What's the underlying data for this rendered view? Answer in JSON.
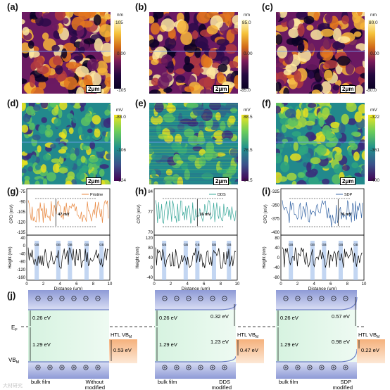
{
  "panel_labels": [
    "(a)",
    "(b)",
    "(c)",
    "(d)",
    "(e)",
    "(f)",
    "(g)",
    "(h)",
    "(i)",
    "(j)"
  ],
  "afm": [
    {
      "unit": "nm",
      "max": "105",
      "mid": "0.00",
      "min": "-105",
      "scale": "2μm"
    },
    {
      "unit": "nm",
      "max": "85.0",
      "mid": "0.00",
      "min": "-85.0",
      "scale": "2μm"
    },
    {
      "unit": "nm",
      "max": "80.0",
      "mid": "0.00",
      "min": "-80.0",
      "scale": "2μm"
    }
  ],
  "kpfm": [
    {
      "unit": "mV",
      "max": "-88.0",
      "mid": "-106",
      "min": "-124",
      "scale": "2μm"
    },
    {
      "unit": "mV",
      "max": "88.5",
      "mid": "76.5",
      "min": "64.5",
      "scale": "2μm"
    },
    {
      "unit": "mV",
      "max": "-322",
      "mid": "-361",
      "min": "-400",
      "scale": "2μm"
    }
  ],
  "chart_data": [
    {
      "type": "line",
      "panel": "(g)",
      "legend": "Pristine",
      "ylabel": "CPD (mV)",
      "yticks": [
        "-75",
        "-90",
        "-105",
        "-120",
        "-135"
      ],
      "annotation": "47 mV",
      "color": "#e8873f"
    },
    {
      "type": "line",
      "panel": "(h)",
      "legend": "DDS",
      "ylabel": "CPD (mV)",
      "yticks": [
        "84",
        "77",
        "70"
      ],
      "annotation": "16 mV",
      "color": "#3aa89a"
    },
    {
      "type": "line",
      "panel": "(i)",
      "legend": "SDP",
      "ylabel": "CPD (mV)",
      "yticks": [
        "-325",
        "-350",
        "-375",
        "-400"
      ],
      "annotation": "76 mV",
      "color": "#3c6aa8"
    },
    {
      "type": "line",
      "panel": "(g)",
      "ylabel": "Height (nm)",
      "yticks": [
        "40",
        "0",
        "-40",
        "-80",
        "-120",
        "-160"
      ],
      "xlabel": "Distance (μm)",
      "xticks": [
        "0",
        "2",
        "4",
        "6",
        "8",
        "10"
      ],
      "gb_label": "GB"
    },
    {
      "type": "line",
      "panel": "(h)",
      "ylabel": "Height (nm)",
      "yticks": [
        "120",
        "80",
        "40",
        "0",
        "-40"
      ],
      "xlabel": "Distance (μm)",
      "xticks": [
        "0",
        "2",
        "4",
        "6",
        "8",
        "10"
      ],
      "gb_label": "GB"
    },
    {
      "type": "line",
      "panel": "(i)",
      "ylabel": "Height (nm)",
      "yticks": [
        "80",
        "40",
        "0",
        "-40",
        "-80"
      ],
      "xlabel": "Distance (μm)",
      "xticks": [
        "0",
        "2",
        "4",
        "6",
        "8",
        "10"
      ],
      "gb_label": "GB"
    }
  ],
  "band": {
    "ef": "E",
    "ef_sub": "F",
    "vbm": "VB",
    "vbm_sub": "M",
    "htl": "HTL VB",
    "htl_sub": "M",
    "panels": [
      {
        "e_top": "0.26 eV",
        "e_bend": "",
        "e_gap": "1.29 eV",
        "e_htl": "0.53 eV",
        "left": "bulk film",
        "right": "Without",
        "right2": "modified"
      },
      {
        "e_top": "0.26 eV",
        "e_bend": "0.32 eV",
        "e_gap": "1.29 eV",
        "e_mid": "1.23 eV",
        "e_htl": "0.47 eV",
        "left": "bulk film",
        "right": "DDS",
        "right2": "modified"
      },
      {
        "e_top": "0.26 eV",
        "e_bend": "0.57 eV",
        "e_gap": "1.29 eV",
        "e_mid": "0.98 eV",
        "e_htl": "0.22 eV",
        "left": "bulk film",
        "right": "SDP",
        "right2": "modified"
      }
    ]
  },
  "watermark": "大材研究"
}
